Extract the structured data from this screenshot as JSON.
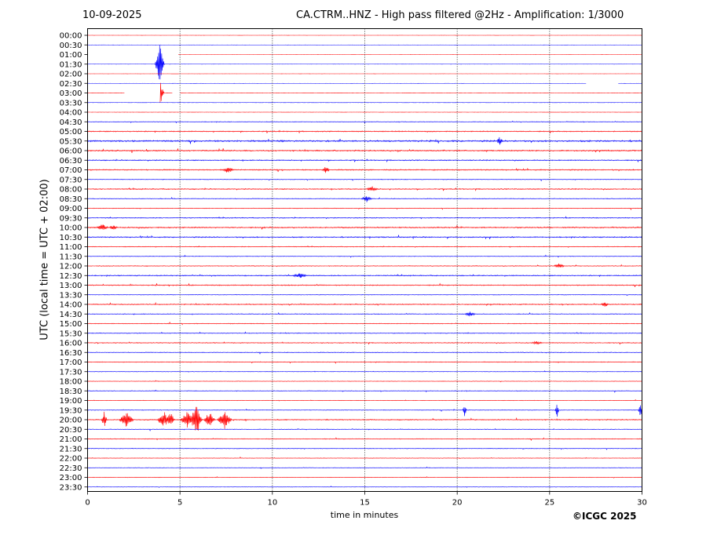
{
  "header": {
    "date": "10-09-2025",
    "title": "CA.CTRM..HNZ - High pass filtered @2Hz - Amplification: 1/3000"
  },
  "footer": {
    "credit": "©ICGC 2025"
  },
  "chart_data": {
    "type": "line",
    "title": "CA.CTRM..HNZ - High pass filtered @2Hz - Amplification: 1/3000",
    "xlabel": "time in minutes",
    "ylabel": "UTC (local time = UTC + 02:00)",
    "xlim": [
      0,
      30
    ],
    "x_ticks": [
      0,
      5,
      10,
      15,
      20,
      25,
      30
    ],
    "x_grid": [
      5,
      10,
      15,
      20,
      25
    ],
    "row_labels": [
      "00:00",
      "00:30",
      "01:00",
      "01:30",
      "02:00",
      "02:30",
      "03:00",
      "03:30",
      "04:00",
      "04:30",
      "05:00",
      "05:30",
      "06:00",
      "06:30",
      "07:00",
      "07:30",
      "08:00",
      "08:30",
      "09:00",
      "09:30",
      "10:00",
      "10:30",
      "11:00",
      "11:30",
      "12:00",
      "12:30",
      "13:00",
      "13:30",
      "14:00",
      "14:30",
      "15:00",
      "15:30",
      "16:00",
      "16:30",
      "17:00",
      "17:30",
      "18:00",
      "18:30",
      "19:00",
      "19:30",
      "20:00",
      "20:30",
      "21:00",
      "21:30",
      "22:00",
      "22:30",
      "23:00",
      "23:30"
    ],
    "trace_colors": [
      "#ff0000",
      "#0000ff"
    ],
    "activity": [
      0.03,
      0.03,
      0.03,
      0.03,
      0.03,
      0.03,
      0.05,
      0.05,
      0.05,
      0.5,
      0.8,
      1.3,
      1.0,
      0.8,
      0.9,
      0.5,
      0.8,
      0.6,
      0.5,
      0.7,
      1.0,
      0.9,
      0.6,
      0.5,
      0.6,
      0.8,
      0.8,
      0.5,
      0.8,
      0.6,
      0.6,
      0.6,
      0.7,
      0.6,
      0.6,
      0.4,
      0.4,
      0.5,
      0.4,
      0.5,
      0.8,
      0.5,
      0.6,
      0.5,
      0.4,
      0.4,
      0.4,
      0.3
    ],
    "gaps": [
      {
        "row": 2,
        "x0": 0.0,
        "x1": 4.9
      },
      {
        "row": 5,
        "x0": 27.0,
        "x1": 28.7
      },
      {
        "row": 6,
        "x0": 2.0,
        "x1": 3.9
      },
      {
        "row": 6,
        "x0": 4.6,
        "x1": 5.0
      }
    ],
    "events": [
      {
        "row": 3,
        "x": 3.9,
        "amp": 32,
        "width": 0.25
      },
      {
        "row": 6,
        "x": 3.95,
        "amp": 14,
        "width": 0.2
      },
      {
        "row": 11,
        "x": 22.3,
        "amp": 5,
        "width": 0.15
      },
      {
        "row": 14,
        "x": 7.6,
        "amp": 4,
        "width": 0.3
      },
      {
        "row": 14,
        "x": 12.9,
        "amp": 4,
        "width": 0.2
      },
      {
        "row": 16,
        "x": 15.4,
        "amp": 3,
        "width": 0.3
      },
      {
        "row": 17,
        "x": 15.1,
        "amp": 3,
        "width": 0.3
      },
      {
        "row": 20,
        "x": 0.8,
        "amp": 4,
        "width": 0.3
      },
      {
        "row": 20,
        "x": 1.4,
        "amp": 3,
        "width": 0.2
      },
      {
        "row": 24,
        "x": 25.5,
        "amp": 3,
        "width": 0.3
      },
      {
        "row": 25,
        "x": 11.5,
        "amp": 3,
        "width": 0.4
      },
      {
        "row": 28,
        "x": 28.0,
        "amp": 3,
        "width": 0.2
      },
      {
        "row": 29,
        "x": 20.7,
        "amp": 3,
        "width": 0.3
      },
      {
        "row": 32,
        "x": 24.3,
        "amp": 2,
        "width": 0.3
      },
      {
        "row": 39,
        "x": 20.4,
        "amp": 9,
        "width": 0.1
      },
      {
        "row": 39,
        "x": 25.4,
        "amp": 10,
        "width": 0.1
      },
      {
        "row": 39,
        "x": 29.9,
        "amp": 9,
        "width": 0.1
      },
      {
        "row": 40,
        "x": 0.9,
        "amp": 10,
        "width": 0.15
      },
      {
        "row": 40,
        "x": 2.1,
        "amp": 9,
        "width": 0.4
      },
      {
        "row": 40,
        "x": 4.1,
        "amp": 12,
        "width": 0.3
      },
      {
        "row": 40,
        "x": 4.5,
        "amp": 10,
        "width": 0.2
      },
      {
        "row": 40,
        "x": 5.4,
        "amp": 10,
        "width": 0.4
      },
      {
        "row": 40,
        "x": 5.9,
        "amp": 20,
        "width": 0.3
      },
      {
        "row": 40,
        "x": 6.6,
        "amp": 10,
        "width": 0.3
      },
      {
        "row": 40,
        "x": 7.4,
        "amp": 12,
        "width": 0.4
      }
    ]
  }
}
